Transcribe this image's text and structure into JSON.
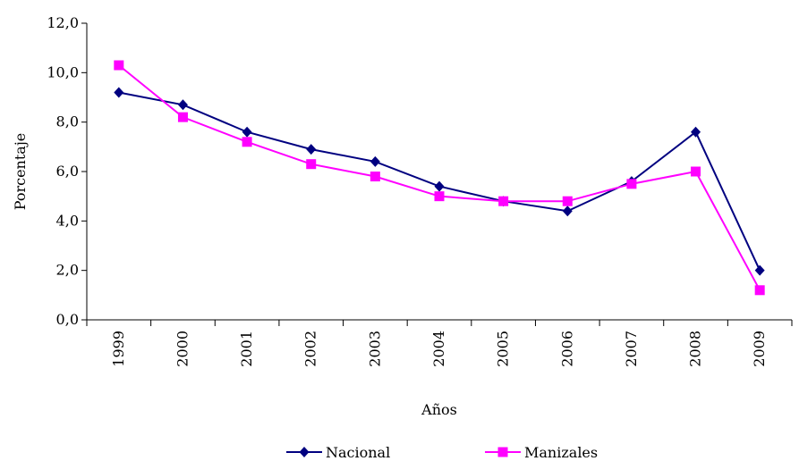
{
  "chart_data": {
    "type": "line",
    "title": "",
    "xlabel": "Años",
    "ylabel": "Porcentaje",
    "ylim": [
      0,
      12
    ],
    "yticks": [
      "0,0",
      "2,0",
      "4,0",
      "6,0",
      "8,0",
      "10,0",
      "12,0"
    ],
    "categories": [
      "1999",
      "2000",
      "2001",
      "2002",
      "2003",
      "2004",
      "2005",
      "2006",
      "2007",
      "2008",
      "2009"
    ],
    "grid": false,
    "legend_position": "bottom",
    "series": [
      {
        "name": "Nacional",
        "color": "#000080",
        "marker": "diamond",
        "values": [
          9.2,
          8.7,
          7.6,
          6.9,
          6.4,
          5.4,
          4.8,
          4.4,
          5.6,
          7.6,
          2.0
        ]
      },
      {
        "name": "Manizales",
        "color": "#FF00FF",
        "marker": "square",
        "values": [
          10.3,
          8.2,
          7.2,
          6.3,
          5.8,
          5.0,
          4.8,
          4.8,
          5.5,
          6.0,
          1.2
        ]
      }
    ]
  }
}
